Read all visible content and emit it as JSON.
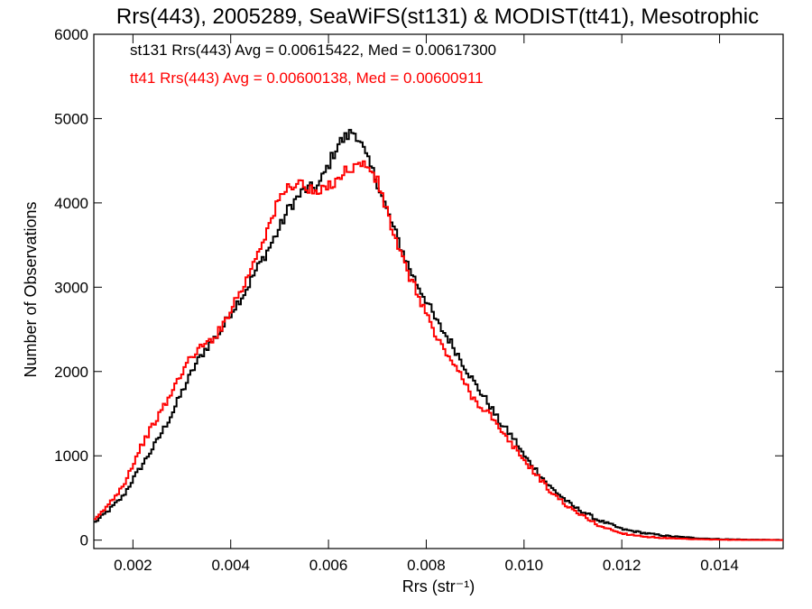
{
  "chart_data": {
    "type": "line",
    "style": "step-histogram",
    "title": "Rrs(443), 2005289, SeaWiFS(st131) & MODIST(tt41), Mesotrophic",
    "xlabel": "Rrs (str⁻¹)",
    "ylabel": "Number of Observations",
    "xlim": [
      0.0012,
      0.0153
    ],
    "ylim": [
      -100,
      6000
    ],
    "x_ticks": [
      0.002,
      0.004,
      0.006,
      0.008,
      0.01,
      0.012,
      0.014
    ],
    "x_tick_labels": [
      "0.002",
      "0.004",
      "0.006",
      "0.008",
      "0.010",
      "0.012",
      "0.014"
    ],
    "y_ticks": [
      0,
      1000,
      2000,
      3000,
      4000,
      5000,
      6000
    ],
    "y_tick_labels": [
      "0",
      "1000",
      "2000",
      "3000",
      "4000",
      "5000",
      "6000"
    ],
    "grid": false,
    "legend_position": "top-left",
    "series": [
      {
        "name": "st131",
        "color": "#000000",
        "annotation": "st131 Rrs(443) Avg = 0.00615422, Med = 0.00617300",
        "x": [
          0.0012,
          0.0015,
          0.0018,
          0.002,
          0.0022,
          0.0025,
          0.0028,
          0.003,
          0.0033,
          0.0035,
          0.0038,
          0.004,
          0.0043,
          0.0045,
          0.0048,
          0.005,
          0.0052,
          0.0055,
          0.0058,
          0.006,
          0.0062,
          0.0064,
          0.0065,
          0.0066,
          0.0068,
          0.007,
          0.0072,
          0.0074,
          0.0076,
          0.0078,
          0.008,
          0.0082,
          0.0085,
          0.0088,
          0.009,
          0.0093,
          0.0095,
          0.0098,
          0.01,
          0.0103,
          0.0105,
          0.0108,
          0.011,
          0.0113,
          0.0115,
          0.0118,
          0.012,
          0.0125,
          0.013,
          0.0135,
          0.014,
          0.0145,
          0.015,
          0.0153
        ],
        "values": [
          200,
          350,
          520,
          720,
          900,
          1180,
          1500,
          1750,
          2100,
          2280,
          2480,
          2700,
          2950,
          3180,
          3480,
          3700,
          3950,
          4150,
          4200,
          4450,
          4700,
          4800,
          4850,
          4800,
          4500,
          4250,
          3900,
          3600,
          3300,
          3050,
          2850,
          2600,
          2350,
          2050,
          1850,
          1600,
          1400,
          1200,
          1000,
          800,
          650,
          500,
          400,
          310,
          240,
          180,
          130,
          80,
          45,
          25,
          12,
          6,
          3,
          2
        ]
      },
      {
        "name": "tt41",
        "color": "#ff0000",
        "annotation": "tt41 Rrs(443) Avg = 0.00600138, Med = 0.00600911",
        "x": [
          0.0012,
          0.0015,
          0.0018,
          0.002,
          0.0022,
          0.0025,
          0.0028,
          0.003,
          0.0033,
          0.0035,
          0.0038,
          0.004,
          0.0043,
          0.0045,
          0.0048,
          0.005,
          0.0052,
          0.0054,
          0.0056,
          0.0058,
          0.006,
          0.0062,
          0.0064,
          0.0066,
          0.0068,
          0.007,
          0.0072,
          0.0074,
          0.0076,
          0.0078,
          0.008,
          0.0082,
          0.0085,
          0.0088,
          0.009,
          0.0093,
          0.0095,
          0.0098,
          0.01,
          0.0103,
          0.0105,
          0.0108,
          0.011,
          0.0113,
          0.0115,
          0.0118,
          0.012,
          0.0125,
          0.013,
          0.0135,
          0.014,
          0.0145,
          0.015,
          0.0153
        ],
        "values": [
          220,
          420,
          650,
          900,
          1150,
          1450,
          1750,
          2000,
          2250,
          2320,
          2500,
          2750,
          3050,
          3350,
          3750,
          4050,
          4200,
          4250,
          4150,
          4100,
          4200,
          4300,
          4400,
          4450,
          4450,
          4250,
          3900,
          3500,
          3200,
          2950,
          2700,
          2400,
          2150,
          1850,
          1650,
          1500,
          1300,
          1100,
          950,
          750,
          600,
          450,
          350,
          260,
          180,
          120,
          80,
          40,
          20,
          10,
          5,
          3,
          2,
          1
        ]
      }
    ]
  }
}
